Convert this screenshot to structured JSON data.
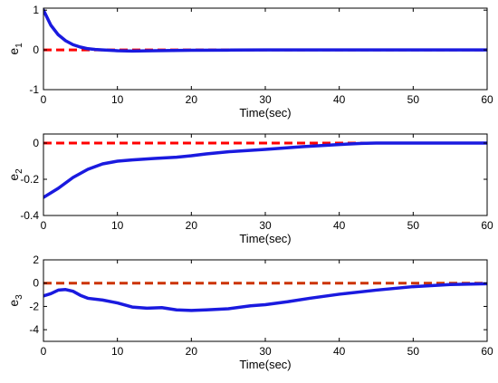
{
  "chart_data": [
    {
      "type": "line",
      "title": "",
      "xlabel": "Time(sec)",
      "ylabel": {
        "main": "e",
        "sub": "1"
      },
      "xlim": [
        0,
        60
      ],
      "ylim": [
        -1,
        1.05
      ],
      "xticks": [
        0,
        10,
        20,
        30,
        40,
        50,
        60
      ],
      "yticks": [
        1,
        0,
        -1
      ],
      "grid": false,
      "series": [
        {
          "color": "#1a1adf",
          "dash": "solid",
          "points": [
            [
              0,
              1.0
            ],
            [
              1,
              0.62
            ],
            [
              2,
              0.38
            ],
            [
              3,
              0.23
            ],
            [
              4,
              0.13
            ],
            [
              5,
              0.07
            ],
            [
              6,
              0.03
            ],
            [
              7,
              0.01
            ],
            [
              8,
              0.0
            ],
            [
              10,
              -0.02
            ],
            [
              12,
              -0.03
            ],
            [
              15,
              -0.02
            ],
            [
              20,
              -0.01
            ],
            [
              25,
              -0.005
            ],
            [
              30,
              0.0
            ],
            [
              40,
              0.0
            ],
            [
              50,
              0.0
            ],
            [
              60,
              0.0
            ]
          ]
        },
        {
          "color": "#ff0000",
          "dash": "dashed",
          "points": [
            [
              0,
              0
            ],
            [
              60,
              0
            ]
          ]
        }
      ]
    },
    {
      "type": "line",
      "title": "",
      "xlabel": "Time(sec)",
      "ylabel": {
        "main": "e",
        "sub": "2"
      },
      "xlim": [
        0,
        60
      ],
      "ylim": [
        -0.4,
        0.05
      ],
      "xticks": [
        0,
        10,
        20,
        30,
        40,
        50,
        60
      ],
      "yticks": [
        0,
        -0.2,
        -0.4
      ],
      "grid": false,
      "series": [
        {
          "color": "#1a1adf",
          "dash": "solid",
          "points": [
            [
              0,
              -0.3
            ],
            [
              2,
              -0.25
            ],
            [
              4,
              -0.19
            ],
            [
              6,
              -0.145
            ],
            [
              8,
              -0.115
            ],
            [
              10,
              -0.1
            ],
            [
              12,
              -0.093
            ],
            [
              15,
              -0.085
            ],
            [
              18,
              -0.078
            ],
            [
              20,
              -0.07
            ],
            [
              22,
              -0.06
            ],
            [
              25,
              -0.048
            ],
            [
              30,
              -0.035
            ],
            [
              35,
              -0.02
            ],
            [
              40,
              -0.008
            ],
            [
              43,
              -0.002
            ],
            [
              45,
              0.0
            ],
            [
              50,
              0.0
            ],
            [
              60,
              0.0
            ]
          ]
        },
        {
          "color": "#ff0000",
          "dash": "dashed",
          "points": [
            [
              0,
              0
            ],
            [
              60,
              0
            ]
          ]
        }
      ]
    },
    {
      "type": "line",
      "title": "",
      "xlabel": "Time(sec)",
      "ylabel": {
        "main": "e",
        "sub": "3"
      },
      "xlim": [
        0,
        60
      ],
      "ylim": [
        -5,
        2
      ],
      "xticks": [
        0,
        10,
        20,
        30,
        40,
        50,
        60
      ],
      "yticks": [
        2,
        0,
        -2,
        -4
      ],
      "grid": false,
      "series": [
        {
          "color": "#1a1adf",
          "dash": "solid",
          "points": [
            [
              0,
              -1.1
            ],
            [
              1,
              -0.9
            ],
            [
              2,
              -0.6
            ],
            [
              3,
              -0.55
            ],
            [
              4,
              -0.7
            ],
            [
              5,
              -1.05
            ],
            [
              6,
              -1.3
            ],
            [
              8,
              -1.45
            ],
            [
              10,
              -1.7
            ],
            [
              12,
              -2.05
            ],
            [
              14,
              -2.15
            ],
            [
              16,
              -2.1
            ],
            [
              18,
              -2.3
            ],
            [
              20,
              -2.35
            ],
            [
              22,
              -2.3
            ],
            [
              25,
              -2.2
            ],
            [
              28,
              -1.95
            ],
            [
              30,
              -1.85
            ],
            [
              33,
              -1.6
            ],
            [
              36,
              -1.3
            ],
            [
              40,
              -0.95
            ],
            [
              45,
              -0.6
            ],
            [
              50,
              -0.3
            ],
            [
              55,
              -0.12
            ],
            [
              60,
              -0.05
            ]
          ]
        },
        {
          "color": "#cc3300",
          "dash": "dashed",
          "points": [
            [
              0,
              0
            ],
            [
              60,
              0
            ]
          ]
        }
      ]
    }
  ]
}
